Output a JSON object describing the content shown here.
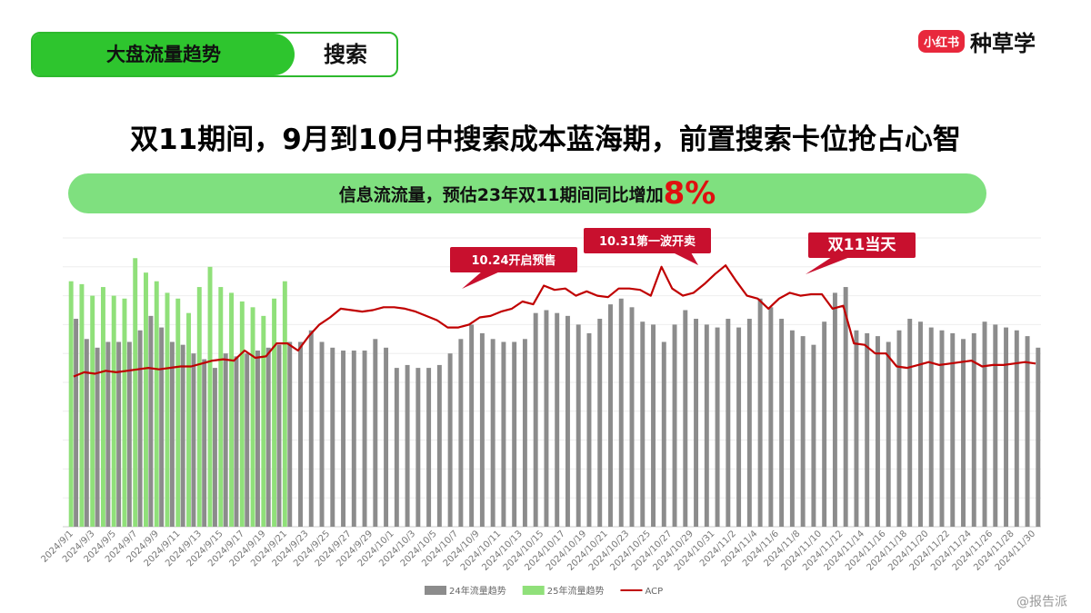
{
  "header": {
    "tabs": [
      "大盘流量趋势",
      "搜索"
    ],
    "logo_badge": "小红书",
    "logo_text": "种草学"
  },
  "title": "双11期间，9月到10月中搜索成本蓝海期，前置搜索卡位抢占心智",
  "banner": {
    "text": "信息流流量，预估23年双11期间同比增加",
    "highlight": "8%"
  },
  "watermark": "@报告派",
  "chart_data": {
    "type": "bar_line",
    "annotations": [
      "10.24开启预售",
      "10.31第一波开卖",
      "双11当天"
    ],
    "categories": [
      "2024/9/1",
      null,
      "2024/9/3",
      null,
      "2024/9/5",
      null,
      "2024/9/7",
      null,
      "2024/9/9",
      null,
      "2024/9/11",
      null,
      "2024/9/13",
      null,
      "2024/9/15",
      null,
      "2024/9/17",
      null,
      "2024/9/19",
      null,
      "2024/9/21",
      null,
      "2024/9/23",
      null,
      "2024/9/25",
      null,
      "2024/9/27",
      null,
      "2024/9/29",
      null,
      "2024/10/1",
      null,
      "2024/10/3",
      null,
      "2024/10/5",
      null,
      "2024/10/7",
      null,
      "2024/10/9",
      null,
      "2024/10/11",
      null,
      "2024/10/13",
      null,
      "2024/10/15",
      null,
      "2024/10/17",
      null,
      "2024/10/19",
      null,
      "2024/10/21",
      null,
      "2024/10/23",
      null,
      "2024/10/25",
      null,
      "2024/10/27",
      null,
      "2024/10/29",
      null,
      "2024/10/31",
      null,
      "2024/11/2",
      null,
      "2024/11/4",
      null,
      "2024/11/6",
      null,
      "2024/11/8",
      null,
      "2024/11/10",
      null,
      "2024/11/12",
      null,
      "2024/11/14",
      null,
      "2024/11/16",
      null,
      "2024/11/18",
      null,
      "2024/11/20",
      null,
      "2024/11/22",
      null,
      "2024/11/24",
      null,
      "2024/11/26",
      null,
      "2024/11/28",
      null,
      "2024/11/30"
    ],
    "series": [
      {
        "name": "24年流量趋势",
        "kind": "bar",
        "color": "#8c8c8c",
        "values": [
          72,
          65,
          62,
          64,
          64,
          64,
          68,
          73,
          69,
          64,
          63,
          60,
          58,
          55,
          60,
          59,
          60,
          61,
          62,
          63,
          64,
          64,
          68,
          64,
          62,
          61,
          61,
          61,
          65,
          62,
          55,
          56,
          55,
          55,
          56,
          60,
          65,
          70,
          67,
          65,
          64,
          64,
          65,
          74,
          75,
          74,
          73,
          70,
          67,
          72,
          77,
          79,
          76,
          71,
          70,
          64,
          70,
          75,
          72,
          70,
          69,
          72,
          69,
          72,
          79,
          76,
          72,
          68,
          66,
          63,
          71,
          81,
          83,
          68,
          67,
          66,
          64,
          68,
          72,
          71,
          69,
          68,
          67,
          65,
          67,
          71,
          70,
          69,
          68,
          66,
          62
        ]
      },
      {
        "name": "25年流量趋势",
        "kind": "bar",
        "color": "#90e07a",
        "values": [
          85,
          84,
          80,
          83,
          80,
          79,
          93,
          88,
          85,
          81,
          79,
          74,
          83,
          90,
          83,
          81,
          78,
          76,
          73,
          79,
          85,
          null,
          null,
          null,
          null,
          null,
          null,
          null,
          null,
          null,
          null,
          null,
          null,
          null,
          null,
          null,
          null,
          null,
          null,
          null,
          null,
          null,
          null,
          null,
          null,
          null,
          null,
          null,
          null,
          null,
          null,
          null,
          null,
          null,
          null,
          null,
          null,
          null,
          null,
          null,
          null,
          null,
          null,
          null,
          null,
          null,
          null,
          null,
          null,
          null,
          null,
          null,
          null,
          null,
          null,
          null,
          null,
          null,
          null,
          null,
          null,
          null,
          null,
          null,
          null,
          null,
          null,
          null,
          null,
          null,
          null
        ]
      },
      {
        "name": "ACP",
        "kind": "line",
        "color": "#c00000",
        "values": [
          52,
          53.5,
          53,
          54,
          53.5,
          54,
          54.5,
          55,
          54.5,
          55,
          55.5,
          55.5,
          56.5,
          57.5,
          58,
          57.5,
          61,
          58.5,
          59,
          63.5,
          63.5,
          61,
          66,
          70,
          72.5,
          75.5,
          75,
          74.5,
          75,
          76,
          76,
          75.5,
          74.5,
          73,
          71.5,
          69,
          69,
          70,
          72.5,
          73,
          74.5,
          75.5,
          78,
          77,
          83.5,
          82,
          82.5,
          80,
          81.5,
          80,
          79.5,
          82.5,
          82.5,
          82,
          80,
          90,
          82.5,
          80,
          81,
          84,
          87.5,
          90.5,
          85,
          80,
          79,
          75.5,
          79,
          81,
          80,
          80.5,
          80.5,
          75.5,
          76.5,
          63.5,
          63,
          60,
          60,
          55.5,
          55,
          56,
          57,
          56,
          56.5,
          57,
          57.5,
          55.5,
          56,
          56,
          56.5,
          57,
          56.5
        ]
      }
    ],
    "ylim": [
      0,
      100
    ],
    "grid": true
  }
}
